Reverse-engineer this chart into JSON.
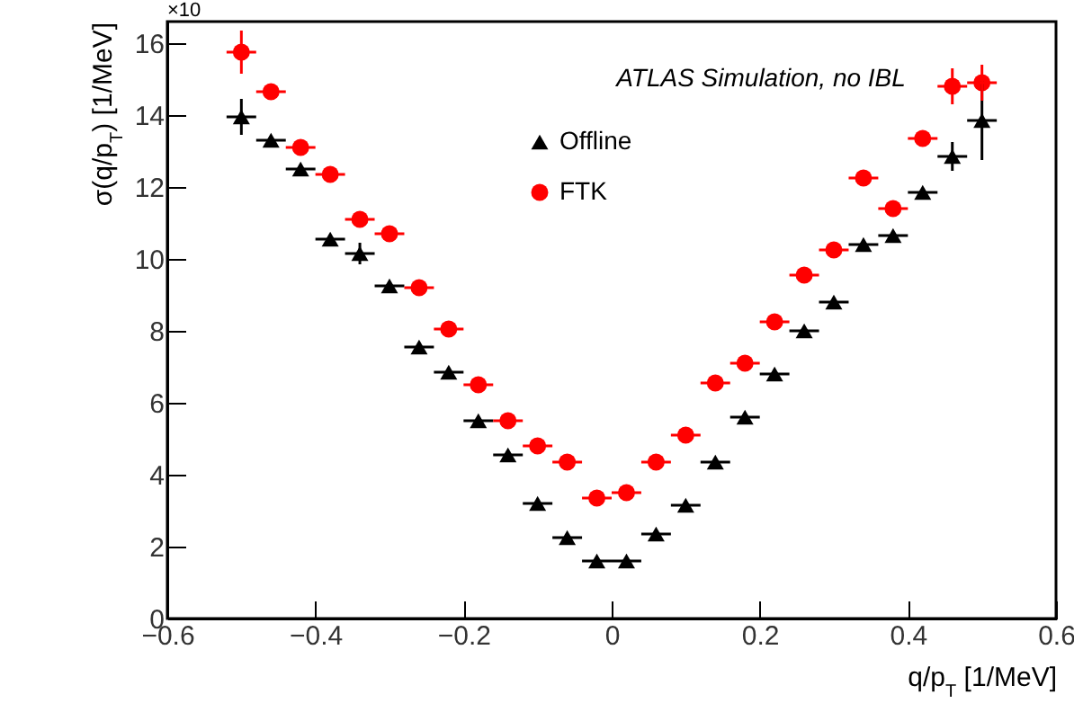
{
  "chart_data": {
    "type": "scatter",
    "xlabel": "q/p$_{T}$ [1/MeV]",
    "ylabel": "σ(q/p$_{T}$) [1/MeV]",
    "annotations": [
      "ATLAS Simulation, no IBL",
      "×10"
    ],
    "x": [
      -0.5,
      -0.46,
      -0.42,
      -0.38,
      -0.34,
      -0.3,
      -0.26,
      -0.22,
      -0.18,
      -0.14,
      -0.1,
      -0.06,
      -0.02,
      0.02,
      0.06,
      0.1,
      0.14,
      0.18,
      0.22,
      0.26,
      0.3,
      0.34,
      0.38,
      0.42,
      0.46,
      0.5
    ],
    "series": [
      {
        "name": "Offline",
        "color": "#000000",
        "marker": "triangle",
        "values": [
          13.95,
          13.3,
          12.5,
          10.55,
          10.15,
          9.25,
          7.55,
          6.85,
          5.5,
          4.55,
          3.2,
          2.25,
          1.6,
          1.6,
          2.35,
          3.15,
          4.35,
          5.6,
          6.8,
          8.0,
          8.8,
          10.4,
          10.65,
          11.85,
          12.85,
          13.85
        ],
        "errors": [
          0.5,
          null,
          null,
          null,
          0.3,
          null,
          null,
          null,
          null,
          null,
          null,
          null,
          null,
          null,
          null,
          null,
          null,
          null,
          null,
          null,
          null,
          null,
          null,
          null,
          0.4,
          1.1
        ],
        "xerrors": [
          0.02,
          0.02,
          0.02,
          0.02,
          0.02,
          0.02,
          0.02,
          0.02,
          0.02,
          0.02,
          0.02,
          0.02,
          0.02,
          0.02,
          0.02,
          0.02,
          0.02,
          0.02,
          0.02,
          0.02,
          0.02,
          0.02,
          0.02,
          0.02,
          0.02,
          0.02
        ]
      },
      {
        "name": "FTK",
        "color": "#ff0000",
        "marker": "circle",
        "values": [
          15.75,
          14.65,
          13.1,
          12.35,
          11.1,
          10.7,
          9.2,
          8.05,
          6.5,
          5.5,
          4.8,
          4.35,
          3.35,
          3.5,
          4.35,
          5.1,
          6.55,
          7.1,
          8.25,
          9.55,
          10.25,
          12.25,
          11.4,
          13.35,
          14.8,
          14.9
        ],
        "errors": [
          0.6,
          null,
          null,
          null,
          null,
          null,
          null,
          null,
          null,
          null,
          null,
          null,
          null,
          null,
          null,
          null,
          null,
          null,
          null,
          null,
          null,
          null,
          null,
          null,
          0.5,
          0.5
        ],
        "xerrors": [
          0.02,
          0.02,
          0.02,
          0.02,
          0.02,
          0.02,
          0.02,
          0.02,
          0.02,
          0.02,
          0.02,
          0.02,
          0.02,
          0.02,
          0.02,
          0.02,
          0.02,
          0.02,
          0.02,
          0.02,
          0.02,
          0.02,
          0.02,
          0.02,
          0.02,
          0.02
        ]
      }
    ],
    "xlim": [
      -0.6,
      0.6
    ],
    "xticks": [
      -0.6,
      -0.4,
      -0.2,
      0,
      0.2,
      0.4,
      0.6
    ],
    "ylim": [
      0,
      16.6
    ],
    "yticks": [
      0,
      2,
      4,
      6,
      8,
      10,
      12,
      14,
      16
    ],
    "legend": "top",
    "grid": false
  }
}
